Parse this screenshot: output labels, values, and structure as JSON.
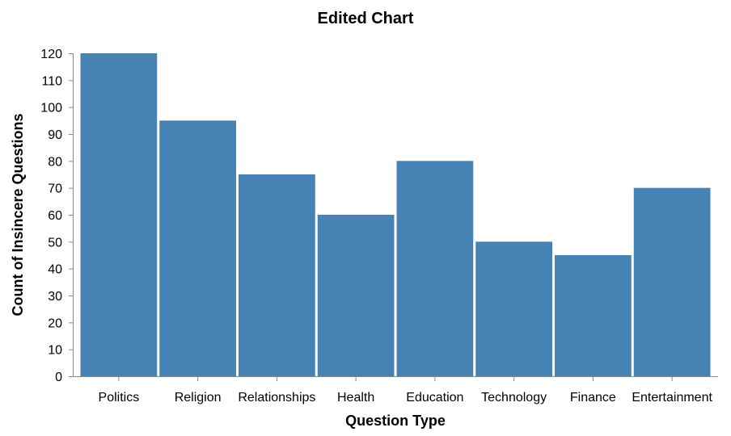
{
  "chart_data": {
    "type": "bar",
    "title": "Edited Chart",
    "xlabel": "Question Type",
    "ylabel": "Count of Insincere Questions",
    "categories": [
      "Politics",
      "Religion",
      "Relationships",
      "Health",
      "Education",
      "Technology",
      "Finance",
      "Entertainment"
    ],
    "values": [
      120,
      95,
      75,
      60,
      80,
      50,
      45,
      70
    ],
    "ylim": [
      0,
      120
    ],
    "yticks": [
      "0",
      "10",
      "20",
      "30",
      "40",
      "50",
      "60",
      "70",
      "80",
      "90",
      "100",
      "110",
      "120"
    ],
    "grid": false,
    "bar_color": "#4682b4"
  }
}
